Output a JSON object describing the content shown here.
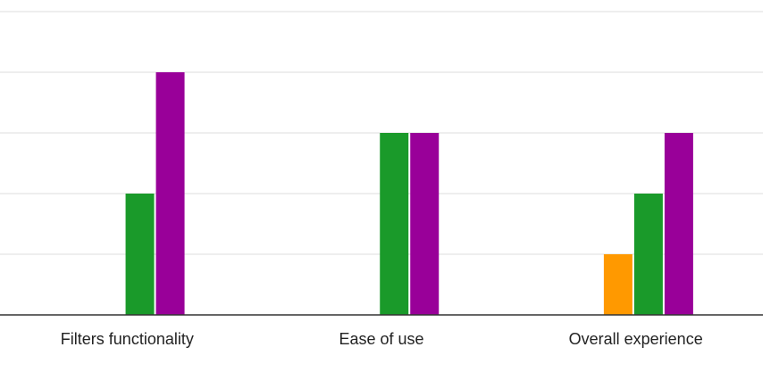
{
  "chart_data": {
    "type": "bar",
    "categories": [
      "Filters functionality",
      "Ease of use",
      "Overall experience"
    ],
    "series": [
      {
        "color": "#ff9900",
        "values": [
          0,
          0,
          1
        ]
      },
      {
        "color": "#1a9a2a",
        "values": [
          2,
          3,
          2
        ]
      },
      {
        "color": "#990099",
        "values": [
          4,
          3,
          3
        ]
      }
    ],
    "ylim": [
      0,
      5
    ],
    "grid": true,
    "xlabel": "",
    "ylabel": "",
    "title": ""
  }
}
